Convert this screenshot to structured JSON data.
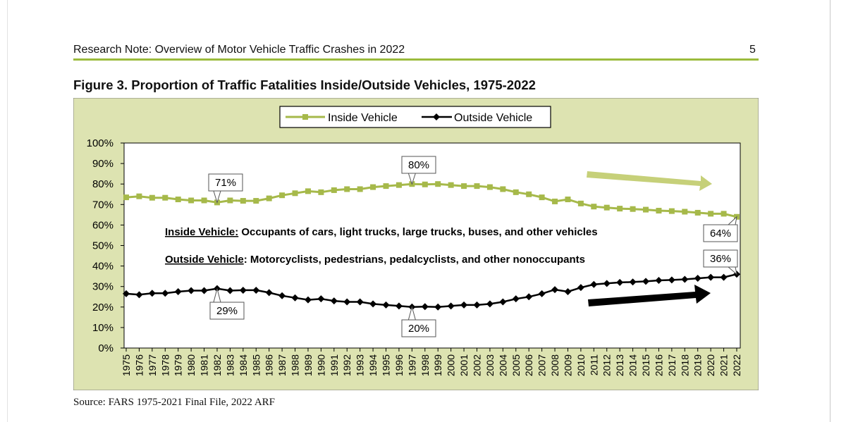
{
  "header": {
    "title": "Research Note: Overview of Motor Vehicle Traffic Crashes in 2022",
    "page_number": "5"
  },
  "colors": {
    "inside": "#a6b94a",
    "outside": "#000000",
    "panel_bg": "#dde3b1",
    "rule": "#9bbb3c"
  },
  "chart_data": {
    "type": "line",
    "title": "Figure 3. Proportion of Traffic Fatalities Inside/Outside Vehicles, 1975-2022",
    "xlabel": "",
    "ylabel": "",
    "ylim": [
      0,
      100
    ],
    "yticks": [
      "0%",
      "10%",
      "20%",
      "30%",
      "40%",
      "50%",
      "60%",
      "70%",
      "80%",
      "90%",
      "100%"
    ],
    "categories": [
      "1975",
      "1976",
      "1977",
      "1978",
      "1979",
      "1980",
      "1981",
      "1982",
      "1983",
      "1984",
      "1985",
      "1986",
      "1987",
      "1988",
      "1989",
      "1990",
      "1991",
      "1992",
      "1993",
      "1994",
      "1995",
      "1996",
      "1997",
      "1998",
      "1999",
      "2000",
      "2001",
      "2002",
      "2003",
      "2004",
      "2005",
      "2006",
      "2007",
      "2008",
      "2009",
      "2010",
      "2011",
      "2012",
      "2013",
      "2014",
      "2015",
      "2016",
      "2017",
      "2018",
      "2019",
      "2020",
      "2021",
      "2022"
    ],
    "series": [
      {
        "name": "Inside Vehicle",
        "values": [
          73.5,
          74,
          73.3,
          73.3,
          72.5,
          72,
          72,
          71,
          72,
          71.8,
          71.8,
          73,
          74.5,
          75.5,
          76.5,
          76,
          77,
          77.5,
          77.5,
          78.5,
          79,
          79.5,
          80,
          79.8,
          80,
          79.5,
          79,
          79,
          78.5,
          77.5,
          76,
          75,
          73.5,
          71.5,
          72.5,
          70.5,
          69,
          68.5,
          68,
          67.8,
          67.5,
          67,
          66.8,
          66.5,
          66,
          65.5,
          65.5,
          64
        ]
      },
      {
        "name": "Outside Vehicle",
        "values": [
          26.5,
          26,
          26.7,
          26.7,
          27.5,
          28,
          28,
          29,
          28,
          28.2,
          28.2,
          27,
          25.5,
          24.5,
          23.5,
          24,
          23,
          22.5,
          22.5,
          21.5,
          21,
          20.5,
          20,
          20.2,
          20,
          20.5,
          21,
          21,
          21.5,
          22.5,
          24,
          25,
          26.5,
          28.5,
          27.5,
          29.5,
          31,
          31.5,
          32,
          32.2,
          32.5,
          33,
          33.2,
          33.5,
          34,
          34.5,
          34.5,
          36
        ]
      }
    ],
    "legend": [
      "Inside Vehicle",
      "Outside Vehicle"
    ],
    "legend_position": "top-center",
    "annotations": [
      "71%",
      "80%",
      "64%",
      "29%",
      "20%",
      "36%"
    ],
    "notes": [
      {
        "label": "Inside Vehicle:",
        "text": " Occupants of cars, light trucks, large trucks, buses, and other vehicles"
      },
      {
        "label": "Outside Vehicle",
        "text": ": Motorcyclists, pedestrians, pedalcyclists, and other nonoccupants"
      }
    ],
    "trend_arrows": [
      "inside-decreasing",
      "outside-increasing"
    ]
  },
  "source": "Source: FARS 1975-2021 Final File, 2022 ARF"
}
